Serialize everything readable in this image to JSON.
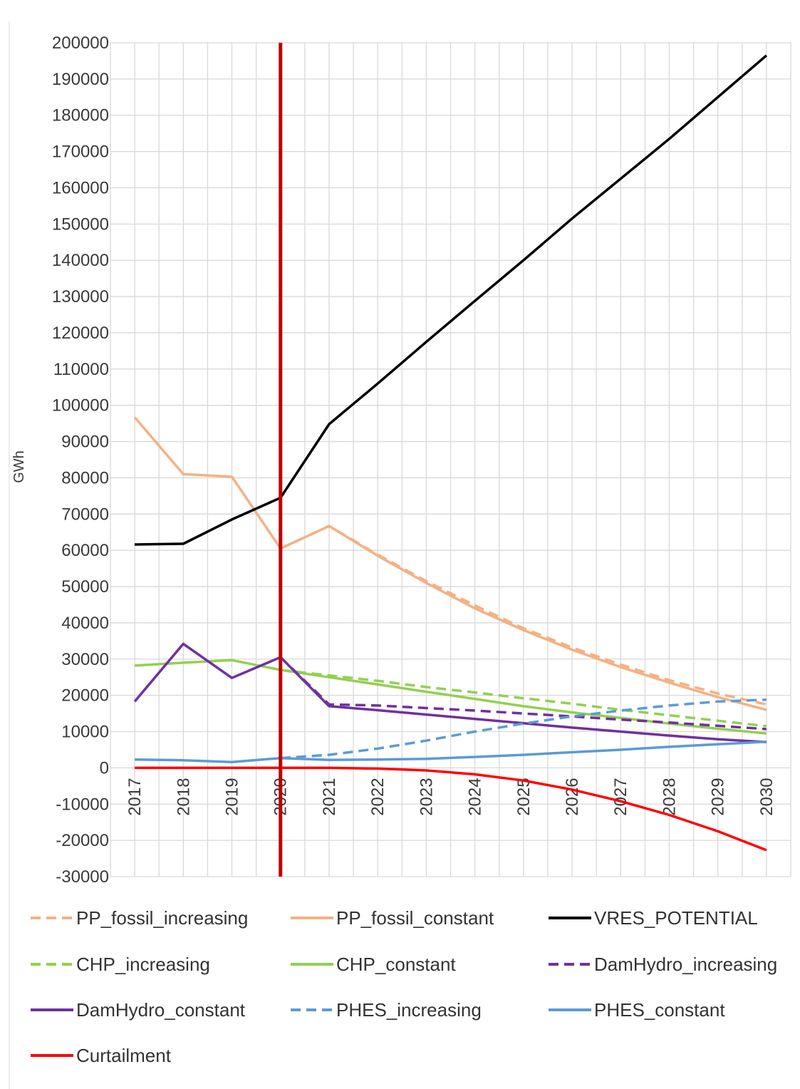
{
  "chart_data": {
    "type": "line",
    "title": "",
    "xlabel": "",
    "ylabel": "GWh",
    "ylim": [
      -30000,
      200000
    ],
    "ytick_step": 10000,
    "grid": true,
    "legend_position": "bottom",
    "x": [
      "2017",
      "2018",
      "2019",
      "2020",
      "2021",
      "2022",
      "2023",
      "2024",
      "2025",
      "2026",
      "2027",
      "2028",
      "2029",
      "2030"
    ],
    "marker_line": {
      "x": "2020",
      "color": "#C00000"
    },
    "series": [
      {
        "name": "PP_fossil_increasing",
        "color": "#F4B183",
        "dash": true,
        "values": [
          null,
          null,
          null,
          60500,
          66700,
          58800,
          51500,
          44800,
          38500,
          33200,
          28500,
          24200,
          20500,
          17500
        ]
      },
      {
        "name": "PP_fossil_constant",
        "color": "#F4B183",
        "dash": false,
        "values": [
          96700,
          81000,
          80300,
          60500,
          66700,
          58500,
          51000,
          44000,
          38000,
          32600,
          27800,
          23500,
          19500,
          16000
        ]
      },
      {
        "name": "VRES_POTENTIAL",
        "color": "#000000",
        "dash": false,
        "values": [
          61600,
          61800,
          68500,
          74500,
          94800,
          106000,
          117500,
          128800,
          140000,
          151500,
          162500,
          173500,
          185000,
          196500
        ]
      },
      {
        "name": "CHP_increasing",
        "color": "#92D050",
        "dash": true,
        "values": [
          null,
          null,
          null,
          27000,
          25500,
          24000,
          22300,
          20800,
          19200,
          17700,
          16000,
          14500,
          13000,
          11500
        ]
      },
      {
        "name": "CHP_constant",
        "color": "#92D050",
        "dash": false,
        "values": [
          28200,
          29000,
          29700,
          27000,
          25000,
          23000,
          21000,
          19000,
          17000,
          15300,
          13800,
          12200,
          10800,
          9500
        ]
      },
      {
        "name": "DamHydro_increasing",
        "color": "#7030A0",
        "dash": true,
        "values": [
          null,
          null,
          null,
          30500,
          17500,
          17200,
          16500,
          15800,
          15000,
          14200,
          13300,
          12500,
          11600,
          10700
        ]
      },
      {
        "name": "DamHydro_constant",
        "color": "#7030A0",
        "dash": false,
        "values": [
          18300,
          34200,
          24800,
          30500,
          17000,
          15900,
          14700,
          13500,
          12300,
          11100,
          10000,
          8900,
          7900,
          7100
        ]
      },
      {
        "name": "PHES_increasing",
        "color": "#5B9BD5",
        "dash": true,
        "values": [
          null,
          null,
          null,
          2700,
          3600,
          5300,
          7500,
          10000,
          12200,
          14200,
          15800,
          17200,
          18300,
          18800
        ]
      },
      {
        "name": "PHES_constant",
        "color": "#5B9BD5",
        "dash": false,
        "values": [
          2300,
          2100,
          1600,
          2700,
          2200,
          2300,
          2500,
          3000,
          3600,
          4300,
          5000,
          5800,
          6500,
          7200
        ]
      },
      {
        "name": "Curtailment",
        "color": "#FF0000",
        "dash": false,
        "values": [
          0,
          0,
          0,
          0,
          0,
          -200,
          -700,
          -1800,
          -3500,
          -6000,
          -9200,
          -13000,
          -17500,
          -22700
        ]
      }
    ]
  }
}
